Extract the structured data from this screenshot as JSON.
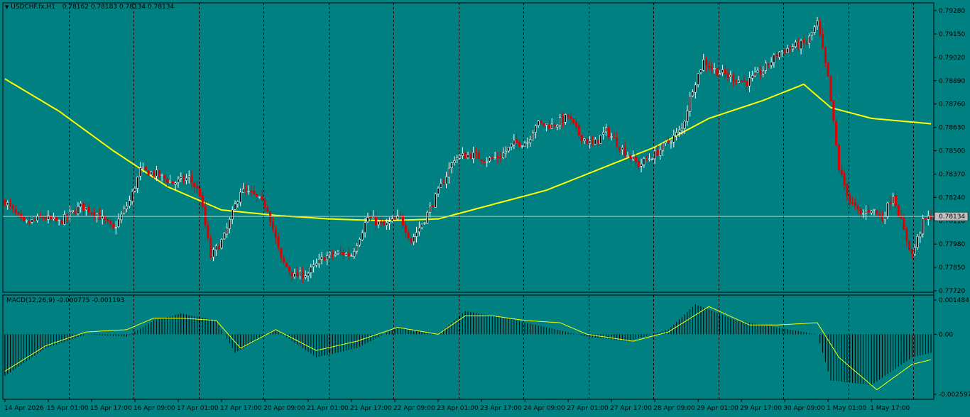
{
  "window": {
    "symbol_title": "USDCHF.fx,H1",
    "ohlc_text": "0.78162 0.78183 0.78134 0.78134",
    "macd_title": "MACD(12,26,9) -0.000775 -0.001193",
    "current_price_label": "0.78134"
  },
  "colors": {
    "background": "#008080",
    "bull_candle": "#ffffff",
    "bear_candle": "#e00000",
    "ma_line": "#ffff00",
    "signal_line": "#ffff00",
    "histogram": "#000000",
    "grid": "#000000",
    "price_line": "#c0c0c0"
  },
  "icons": {
    "menu": "triangle-down-icon"
  },
  "chart_data": [
    {
      "type": "candlestick",
      "title": "USDCHF.fx,H1",
      "ylim": [
        0.7772,
        0.7928
      ],
      "y_ticks": [
        "0.79280",
        "0.79150",
        "0.79020",
        "0.78890",
        "0.78760",
        "0.78630",
        "0.78500",
        "0.78370",
        "0.78240",
        "0.78110",
        "0.77980",
        "0.77850",
        "0.77720"
      ],
      "x_ticks": [
        "14 Apr 2026",
        "15 Apr 01:00",
        "15 Apr 17:00",
        "16 Apr 09:00",
        "17 Apr 01:00",
        "17 Apr 17:00",
        "20 Apr 09:00",
        "21 Apr 01:00",
        "21 Apr 17:00",
        "22 Apr 09:00",
        "23 Apr 01:00",
        "23 Apr 17:00",
        "24 Apr 09:00",
        "27 Apr 01:00",
        "27 Apr 17:00",
        "28 Apr 09:00",
        "29 Apr 01:00",
        "29 Apr 17:00",
        "30 Apr 09:00",
        "1 May 01:00",
        "1 May 17:00"
      ],
      "current_price": 0.78134,
      "price_anchors": [
        [
          0,
          0.7822
        ],
        [
          7,
          0.7809
        ],
        [
          14,
          0.7813
        ],
        [
          20,
          0.781
        ],
        [
          28,
          0.7819
        ],
        [
          34,
          0.7815
        ],
        [
          40,
          0.7806
        ],
        [
          46,
          0.7822
        ],
        [
          50,
          0.7839
        ],
        [
          56,
          0.7837
        ],
        [
          62,
          0.7832
        ],
        [
          68,
          0.7835
        ],
        [
          72,
          0.7826
        ],
        [
          76,
          0.7791
        ],
        [
          81,
          0.7802
        ],
        [
          87,
          0.7828
        ],
        [
          92,
          0.7825
        ],
        [
          97,
          0.7818
        ],
        [
          102,
          0.7789
        ],
        [
          107,
          0.778
        ],
        [
          112,
          0.7782
        ],
        [
          118,
          0.7791
        ],
        [
          124,
          0.7793
        ],
        [
          128,
          0.7792
        ],
        [
          134,
          0.7813
        ],
        [
          140,
          0.7808
        ],
        [
          146,
          0.7813
        ],
        [
          150,
          0.78
        ],
        [
          155,
          0.7812
        ],
        [
          160,
          0.7827
        ],
        [
          166,
          0.7846
        ],
        [
          172,
          0.7848
        ],
        [
          178,
          0.7845
        ],
        [
          183,
          0.7847
        ],
        [
          188,
          0.7854
        ],
        [
          193,
          0.7855
        ],
        [
          196,
          0.7865
        ],
        [
          202,
          0.7864
        ],
        [
          208,
          0.7869
        ],
        [
          212,
          0.7859
        ],
        [
          217,
          0.7853
        ],
        [
          222,
          0.7861
        ],
        [
          228,
          0.7851
        ],
        [
          234,
          0.7842
        ],
        [
          240,
          0.7848
        ],
        [
          245,
          0.7855
        ],
        [
          250,
          0.7862
        ],
        [
          254,
          0.7885
        ],
        [
          258,
          0.79
        ],
        [
          262,
          0.7895
        ],
        [
          268,
          0.7891
        ],
        [
          274,
          0.7888
        ],
        [
          280,
          0.7895
        ],
        [
          286,
          0.7905
        ],
        [
          291,
          0.7908
        ],
        [
          296,
          0.791
        ],
        [
          300,
          0.7921
        ],
        [
          304,
          0.789
        ],
        [
          308,
          0.784
        ],
        [
          312,
          0.7822
        ],
        [
          316,
          0.7814
        ],
        [
          320,
          0.7818
        ],
        [
          324,
          0.7812
        ],
        [
          328,
          0.7826
        ],
        [
          332,
          0.7805
        ],
        [
          335,
          0.7792
        ],
        [
          339,
          0.781
        ],
        [
          342,
          0.7814
        ]
      ],
      "ma_anchors": [
        [
          0,
          0.789
        ],
        [
          20,
          0.7872
        ],
        [
          40,
          0.785
        ],
        [
          60,
          0.783
        ],
        [
          80,
          0.7817
        ],
        [
          100,
          0.7814
        ],
        [
          120,
          0.7812
        ],
        [
          140,
          0.7811
        ],
        [
          160,
          0.7812
        ],
        [
          180,
          0.782
        ],
        [
          200,
          0.7828
        ],
        [
          220,
          0.784
        ],
        [
          240,
          0.7852
        ],
        [
          260,
          0.7868
        ],
        [
          280,
          0.7878
        ],
        [
          295,
          0.7887
        ],
        [
          305,
          0.7874
        ],
        [
          320,
          0.7868
        ],
        [
          342,
          0.7865
        ]
      ]
    },
    {
      "type": "macd",
      "title": "MACD(12,26,9)",
      "ylim": [
        -0.002597,
        0.001484
      ],
      "y_ticks": [
        "0.001484",
        "0.00",
        "-0.002597"
      ],
      "histogram_anchors": [
        [
          0,
          -0.0018
        ],
        [
          15,
          -0.0006
        ],
        [
          30,
          0.0
        ],
        [
          45,
          -0.0001
        ],
        [
          55,
          0.0006
        ],
        [
          65,
          0.0009
        ],
        [
          78,
          0.0006
        ],
        [
          85,
          -0.0008
        ],
        [
          100,
          0.0002
        ],
        [
          115,
          -0.001
        ],
        [
          130,
          -0.0006
        ],
        [
          145,
          0.0003
        ],
        [
          160,
          0.0
        ],
        [
          170,
          0.001
        ],
        [
          185,
          0.0007
        ],
        [
          200,
          0.0003
        ],
        [
          215,
          -0.0001
        ],
        [
          230,
          -0.0003
        ],
        [
          245,
          0.0002
        ],
        [
          255,
          0.0013
        ],
        [
          270,
          0.0006
        ],
        [
          285,
          0.0003
        ],
        [
          300,
          0.0
        ],
        [
          305,
          -0.002
        ],
        [
          320,
          -0.0022
        ],
        [
          335,
          -0.001
        ],
        [
          342,
          -0.0008
        ]
      ],
      "signal_anchors": [
        [
          0,
          -0.0016
        ],
        [
          15,
          -0.0005
        ],
        [
          30,
          0.0001
        ],
        [
          45,
          0.0002
        ],
        [
          55,
          0.0007
        ],
        [
          65,
          0.0007
        ],
        [
          78,
          0.0006
        ],
        [
          87,
          -0.0006
        ],
        [
          100,
          0.0002
        ],
        [
          115,
          -0.0007
        ],
        [
          130,
          -0.0003
        ],
        [
          145,
          0.0003
        ],
        [
          160,
          0.0
        ],
        [
          170,
          0.0008
        ],
        [
          180,
          0.0008
        ],
        [
          192,
          0.0006
        ],
        [
          205,
          0.0005
        ],
        [
          215,
          0.0
        ],
        [
          232,
          -0.0003
        ],
        [
          245,
          0.0001
        ],
        [
          260,
          0.0012
        ],
        [
          275,
          0.0004
        ],
        [
          285,
          0.0004
        ],
        [
          300,
          0.0005
        ],
        [
          308,
          -0.001
        ],
        [
          322,
          -0.0024
        ],
        [
          335,
          -0.0013
        ],
        [
          342,
          -0.0011
        ]
      ]
    }
  ]
}
